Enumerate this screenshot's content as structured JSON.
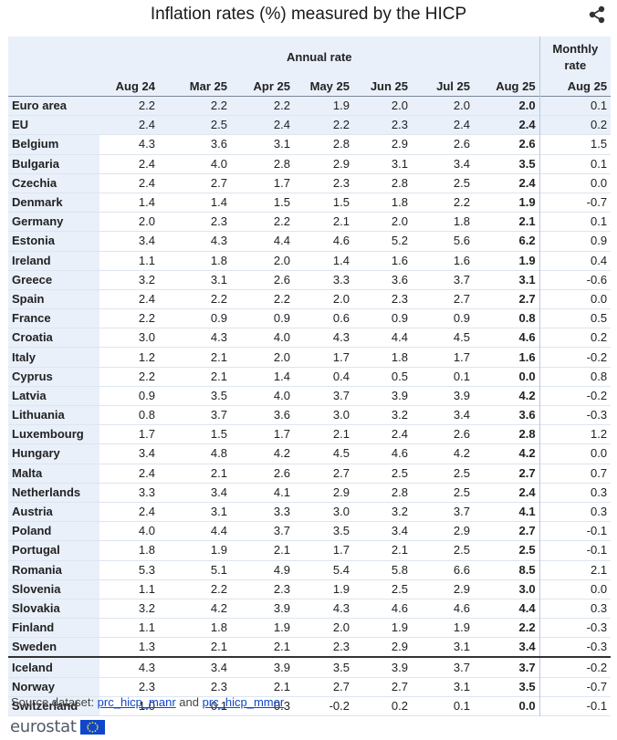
{
  "title": "Inflation rates (%) measured by the HICP",
  "share_icon": "share-icon",
  "header": {
    "annual_group": "Annual rate",
    "monthly_group_line1": "Monthly",
    "monthly_group_line2": "rate",
    "columns": [
      "Aug 24",
      "Mar 25",
      "Apr 25",
      "May 25",
      "Jun 25",
      "Jul 25",
      "Aug 25",
      "Aug 25"
    ]
  },
  "rows": [
    {
      "country": "Euro area",
      "values": [
        "2.2",
        "2.2",
        "2.2",
        "1.9",
        "2.0",
        "2.0",
        "2.0",
        "0.1"
      ]
    },
    {
      "country": "EU",
      "values": [
        "2.4",
        "2.5",
        "2.4",
        "2.2",
        "2.3",
        "2.4",
        "2.4",
        "0.2"
      ]
    },
    {
      "country": "Belgium",
      "values": [
        "4.3",
        "3.6",
        "3.1",
        "2.8",
        "2.9",
        "2.6",
        "2.6",
        "1.5"
      ]
    },
    {
      "country": "Bulgaria",
      "values": [
        "2.4",
        "4.0",
        "2.8",
        "2.9",
        "3.1",
        "3.4",
        "3.5",
        "0.1"
      ]
    },
    {
      "country": "Czechia",
      "values": [
        "2.4",
        "2.7",
        "1.7",
        "2.3",
        "2.8",
        "2.5",
        "2.4",
        "0.0"
      ]
    },
    {
      "country": "Denmark",
      "values": [
        "1.4",
        "1.4",
        "1.5",
        "1.5",
        "1.8",
        "2.2",
        "1.9",
        "-0.7"
      ]
    },
    {
      "country": "Germany",
      "values": [
        "2.0",
        "2.3",
        "2.2",
        "2.1",
        "2.0",
        "1.8",
        "2.1",
        "0.1"
      ]
    },
    {
      "country": "Estonia",
      "values": [
        "3.4",
        "4.3",
        "4.4",
        "4.6",
        "5.2",
        "5.6",
        "6.2",
        "0.9"
      ]
    },
    {
      "country": "Ireland",
      "values": [
        "1.1",
        "1.8",
        "2.0",
        "1.4",
        "1.6",
        "1.6",
        "1.9",
        "0.4"
      ]
    },
    {
      "country": "Greece",
      "values": [
        "3.2",
        "3.1",
        "2.6",
        "3.3",
        "3.6",
        "3.7",
        "3.1",
        "-0.6"
      ]
    },
    {
      "country": "Spain",
      "values": [
        "2.4",
        "2.2",
        "2.2",
        "2.0",
        "2.3",
        "2.7",
        "2.7",
        "0.0"
      ]
    },
    {
      "country": "France",
      "values": [
        "2.2",
        "0.9",
        "0.9",
        "0.6",
        "0.9",
        "0.9",
        "0.8",
        "0.5"
      ]
    },
    {
      "country": "Croatia",
      "values": [
        "3.0",
        "4.3",
        "4.0",
        "4.3",
        "4.4",
        "4.5",
        "4.6",
        "0.2"
      ]
    },
    {
      "country": "Italy",
      "values": [
        "1.2",
        "2.1",
        "2.0",
        "1.7",
        "1.8",
        "1.7",
        "1.6",
        "-0.2"
      ]
    },
    {
      "country": "Cyprus",
      "values": [
        "2.2",
        "2.1",
        "1.4",
        "0.4",
        "0.5",
        "0.1",
        "0.0",
        "0.8"
      ]
    },
    {
      "country": "Latvia",
      "values": [
        "0.9",
        "3.5",
        "4.0",
        "3.7",
        "3.9",
        "3.9",
        "4.2",
        "-0.2"
      ]
    },
    {
      "country": "Lithuania",
      "values": [
        "0.8",
        "3.7",
        "3.6",
        "3.0",
        "3.2",
        "3.4",
        "3.6",
        "-0.3"
      ]
    },
    {
      "country": "Luxembourg",
      "values": [
        "1.7",
        "1.5",
        "1.7",
        "2.1",
        "2.4",
        "2.6",
        "2.8",
        "1.2"
      ]
    },
    {
      "country": "Hungary",
      "values": [
        "3.4",
        "4.8",
        "4.2",
        "4.5",
        "4.6",
        "4.2",
        "4.2",
        "0.0"
      ]
    },
    {
      "country": "Malta",
      "values": [
        "2.4",
        "2.1",
        "2.6",
        "2.7",
        "2.5",
        "2.5",
        "2.7",
        "0.7"
      ]
    },
    {
      "country": "Netherlands",
      "values": [
        "3.3",
        "3.4",
        "4.1",
        "2.9",
        "2.8",
        "2.5",
        "2.4",
        "0.3"
      ]
    },
    {
      "country": "Austria",
      "values": [
        "2.4",
        "3.1",
        "3.3",
        "3.0",
        "3.2",
        "3.7",
        "4.1",
        "0.3"
      ]
    },
    {
      "country": "Poland",
      "values": [
        "4.0",
        "4.4",
        "3.7",
        "3.5",
        "3.4",
        "2.9",
        "2.7",
        "-0.1"
      ]
    },
    {
      "country": "Portugal",
      "values": [
        "1.8",
        "1.9",
        "2.1",
        "1.7",
        "2.1",
        "2.5",
        "2.5",
        "-0.1"
      ]
    },
    {
      "country": "Romania",
      "values": [
        "5.3",
        "5.1",
        "4.9",
        "5.4",
        "5.8",
        "6.6",
        "8.5",
        "2.1"
      ]
    },
    {
      "country": "Slovenia",
      "values": [
        "1.1",
        "2.2",
        "2.3",
        "1.9",
        "2.5",
        "2.9",
        "3.0",
        "0.0"
      ]
    },
    {
      "country": "Slovakia",
      "values": [
        "3.2",
        "4.2",
        "3.9",
        "4.3",
        "4.6",
        "4.6",
        "4.4",
        "0.3"
      ]
    },
    {
      "country": "Finland",
      "values": [
        "1.1",
        "1.8",
        "1.9",
        "2.0",
        "1.9",
        "1.9",
        "2.2",
        "-0.3"
      ]
    },
    {
      "country": "Sweden",
      "values": [
        "1.3",
        "2.1",
        "2.1",
        "2.3",
        "2.9",
        "3.1",
        "3.4",
        "-0.3"
      ]
    },
    {
      "country": "Iceland",
      "values": [
        "4.3",
        "3.4",
        "3.9",
        "3.5",
        "3.9",
        "3.7",
        "3.7",
        "-0.2"
      ]
    },
    {
      "country": "Norway",
      "values": [
        "2.3",
        "2.3",
        "2.1",
        "2.7",
        "2.7",
        "3.1",
        "3.5",
        "-0.7"
      ]
    },
    {
      "country": "Switzerland",
      "values": [
        "1.0",
        "0.1",
        "0.3",
        "-0.2",
        "0.2",
        "0.1",
        "0.0",
        "-0.1"
      ]
    }
  ],
  "source": {
    "prefix": "Source dataset: ",
    "link1": "prc_hicp_manr",
    "conjunction": " and ",
    "link2": "prc_hicp_mmor"
  },
  "logo": {
    "text": "eurostat",
    "flag_icon": "eu-flag-icon"
  },
  "colors": {
    "header_bg": "#e9f0fa",
    "link": "#0e47cb"
  }
}
